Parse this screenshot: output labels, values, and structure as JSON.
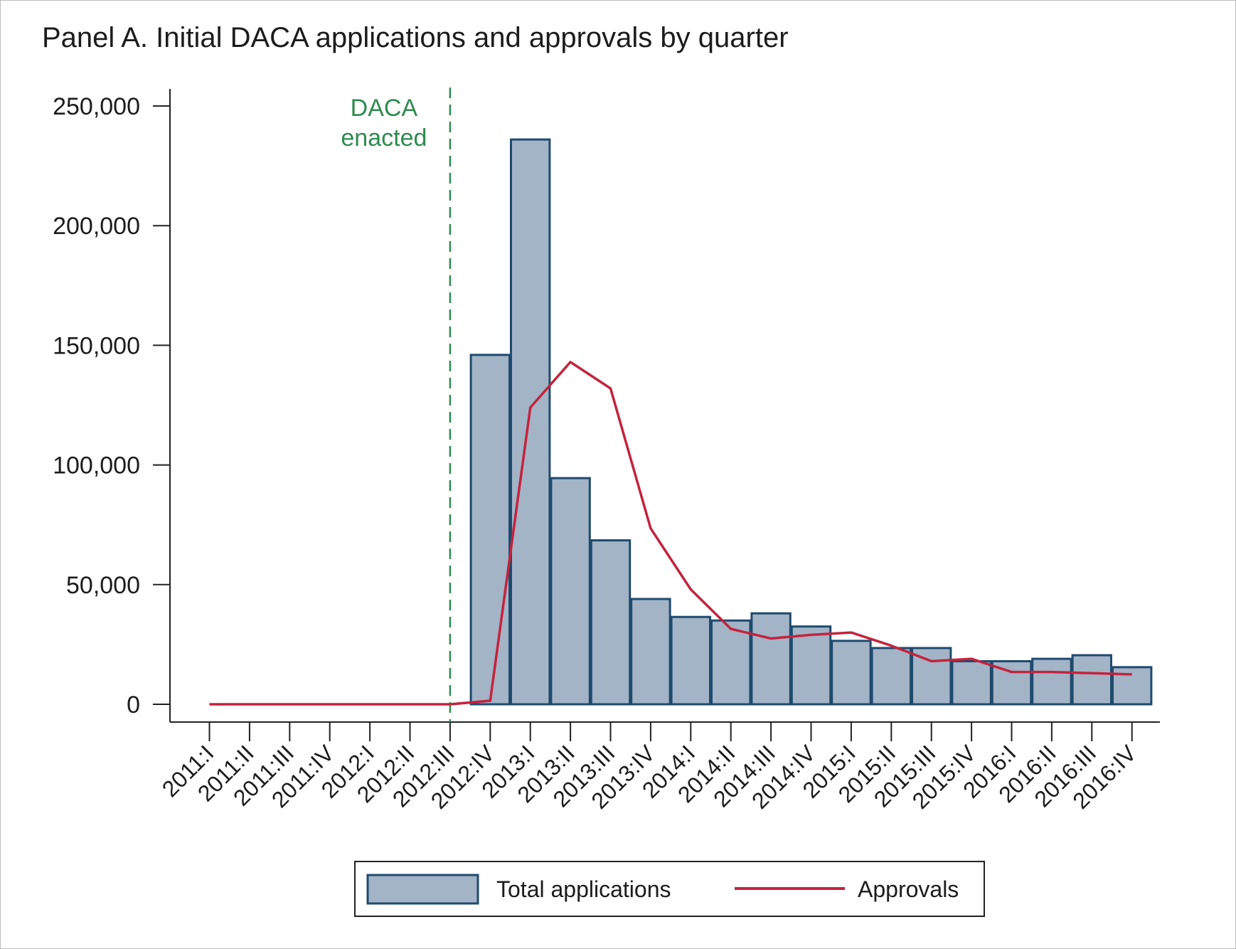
{
  "chart_data": {
    "type": "bar",
    "title": "Panel A. Initial DACA applications and approvals by quarter",
    "xlabel": "",
    "ylabel": "",
    "categories": [
      "2011:I",
      "2011:II",
      "2011:III",
      "2011:IV",
      "2012:I",
      "2012:II",
      "2012:III",
      "2012:IV",
      "2013:I",
      "2013:II",
      "2013:III",
      "2013:IV",
      "2014:I",
      "2014:II",
      "2014:III",
      "2014:IV",
      "2015:I",
      "2015:II",
      "2015:III",
      "2015:IV",
      "2016:I",
      "2016:II",
      "2016:III",
      "2016:IV"
    ],
    "ylim": [
      0,
      250000
    ],
    "yticks": [
      0,
      50000,
      100000,
      150000,
      200000,
      250000
    ],
    "ytick_labels": [
      "0",
      "50,000",
      "100,000",
      "150,000",
      "200,000",
      "250,000"
    ],
    "series": [
      {
        "name": "Total applications",
        "kind": "bar",
        "color": "#a3b4c6",
        "edge_color": "#1f4a6e",
        "values": [
          null,
          null,
          null,
          null,
          null,
          null,
          null,
          146000,
          236000,
          94500,
          68500,
          44000,
          36500,
          35000,
          38000,
          32500,
          26500,
          23500,
          23500,
          18000,
          18000,
          19000,
          20500,
          15500
        ]
      },
      {
        "name": "Approvals",
        "kind": "line",
        "color": "#c4233d",
        "values": [
          0,
          0,
          0,
          0,
          0,
          0,
          0,
          1500,
          124000,
          143000,
          132000,
          73500,
          48000,
          31500,
          27500,
          29000,
          30000,
          24500,
          18000,
          19000,
          13500,
          13500,
          13000,
          12500
        ]
      }
    ],
    "annotations": [
      {
        "text_lines": [
          "DACA",
          "enacted"
        ],
        "at_category": "2012:III",
        "style": "dashed-vertical",
        "color": "#2e8b4f"
      }
    ],
    "grid": false,
    "legend": {
      "placement": "bottom-center",
      "entries": [
        "Total applications",
        "Approvals"
      ]
    }
  }
}
